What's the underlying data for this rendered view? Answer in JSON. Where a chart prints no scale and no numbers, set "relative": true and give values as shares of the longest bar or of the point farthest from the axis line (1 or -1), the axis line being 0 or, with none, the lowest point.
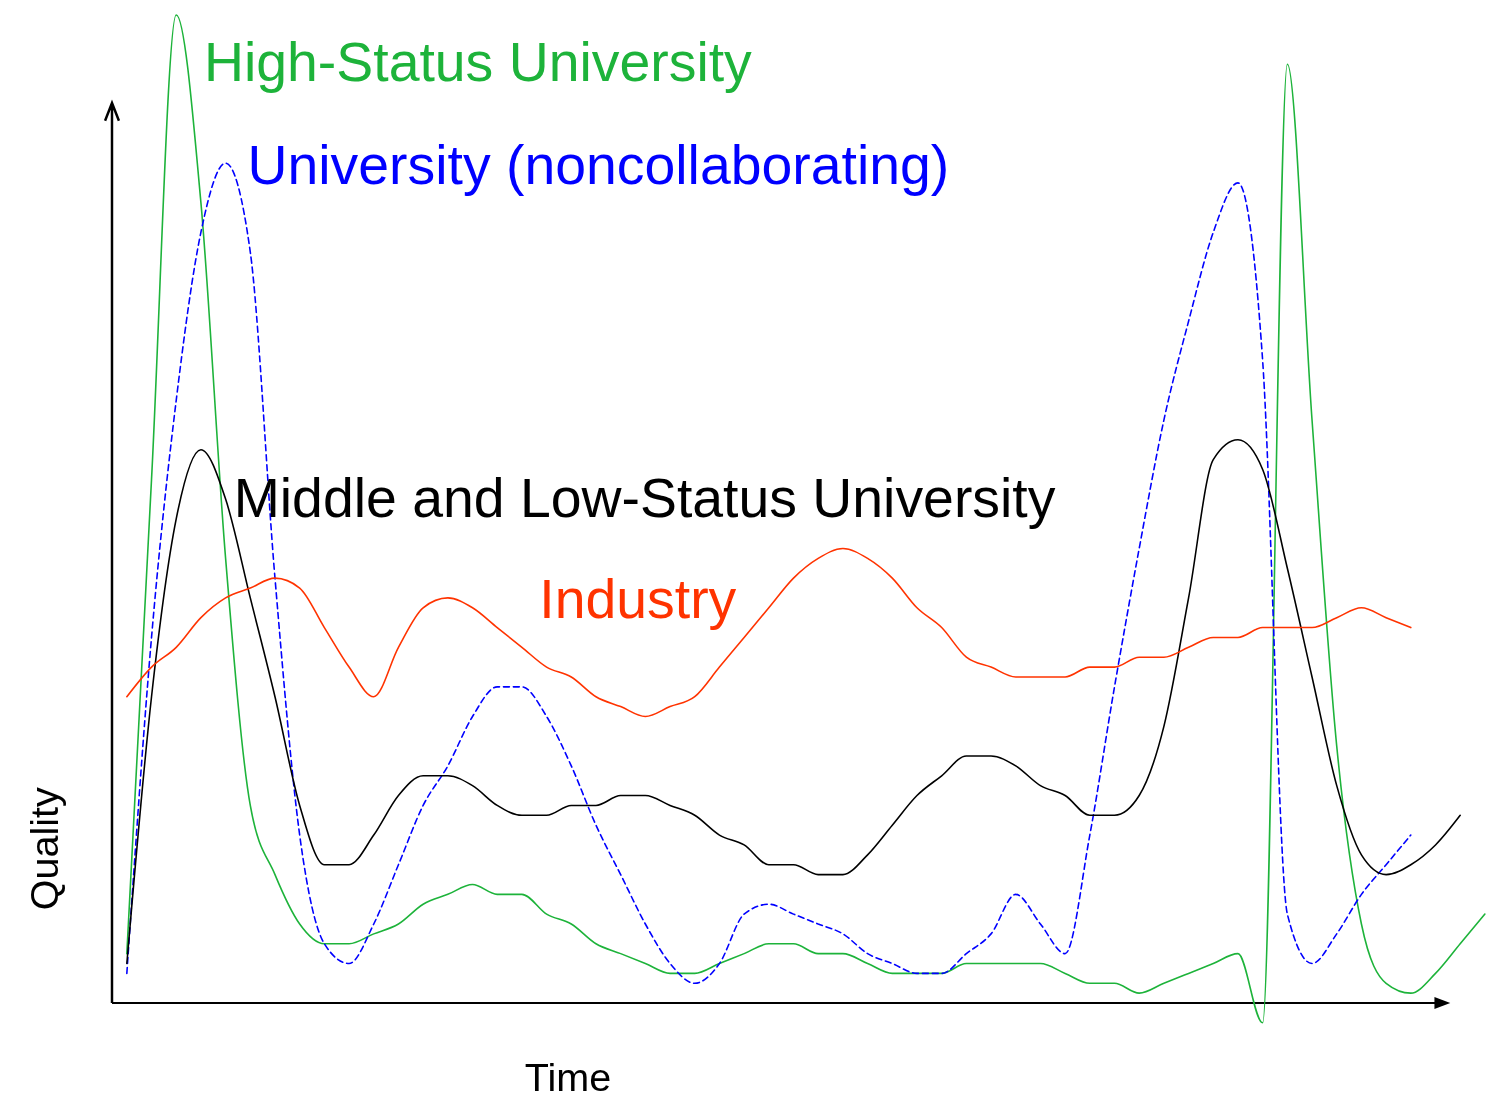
{
  "chart_data": {
    "type": "line",
    "relative": true,
    "xlabel": "Time",
    "ylabel": "Quality",
    "categories": [
      null,
      null,
      null,
      null,
      null,
      null,
      null,
      null,
      null,
      null,
      null,
      null,
      null,
      null,
      null,
      null,
      null,
      null,
      null,
      null,
      null,
      null,
      null,
      null,
      null,
      null,
      null,
      null,
      null,
      null,
      null,
      null,
      null,
      null,
      null,
      null,
      null,
      null,
      null,
      null,
      null,
      null,
      null,
      null,
      null,
      null,
      null,
      null,
      null,
      null,
      null,
      null,
      null,
      null,
      null,
      null
    ],
    "series": [
      {
        "name": "High-Status University",
        "color": "#1db33a",
        "values": [
          0.05,
          0.53,
          1.0,
          0.81,
          0.45,
          0.2,
          0.13,
          0.08,
          0.06,
          0.06,
          0.07,
          0.08,
          0.1,
          0.11,
          0.12,
          0.11,
          0.11,
          0.09,
          0.08,
          0.06,
          0.05,
          0.04,
          0.03,
          0.03,
          0.04,
          0.05,
          0.06,
          0.06,
          0.05,
          0.05,
          0.04,
          0.03,
          0.03,
          0.03,
          0.04,
          0.04,
          0.04,
          0.04,
          0.03,
          0.02,
          0.02,
          0.01,
          0.02,
          0.03,
          0.04,
          0.05,
          -0.02,
          0.95,
          0.59,
          0.26,
          0.08,
          0.02,
          0.01,
          0.03,
          0.06,
          0.09
        ]
      },
      {
        "name": "University (noncollaborating)",
        "color": "#0000ff",
        "line_style": "dashed",
        "values": [
          0.03,
          0.37,
          0.61,
          0.78,
          0.85,
          0.76,
          0.43,
          0.17,
          0.06,
          0.04,
          0.08,
          0.14,
          0.2,
          0.24,
          0.29,
          0.32,
          0.32,
          0.29,
          0.24,
          0.18,
          0.13,
          0.08,
          0.04,
          0.02,
          0.04,
          0.09,
          0.1,
          0.09,
          0.08,
          0.07,
          0.05,
          0.04,
          0.03,
          0.03,
          0.05,
          0.07,
          0.11,
          0.08,
          0.05,
          0.17,
          0.32,
          0.46,
          0.59,
          0.69,
          0.78,
          0.83,
          0.65,
          0.09,
          0.04,
          0.07,
          0.11,
          0.14,
          0.17,
          null,
          null,
          null
        ]
      },
      {
        "name": "Middle and Low-Status University",
        "color": "#000000",
        "values": [
          0.04,
          0.31,
          0.49,
          0.56,
          0.51,
          0.41,
          0.31,
          0.2,
          0.14,
          0.14,
          0.17,
          0.21,
          0.23,
          0.23,
          0.22,
          0.2,
          0.19,
          0.19,
          0.2,
          0.2,
          0.21,
          0.21,
          0.2,
          0.19,
          0.17,
          0.16,
          0.14,
          0.14,
          0.13,
          0.13,
          0.15,
          0.18,
          0.21,
          0.23,
          0.25,
          0.25,
          0.24,
          0.22,
          0.21,
          0.19,
          0.19,
          0.21,
          0.28,
          0.41,
          0.55,
          0.57,
          0.54,
          0.44,
          0.33,
          0.22,
          0.15,
          0.13,
          0.14,
          0.16,
          0.19,
          null
        ]
      },
      {
        "name": "Industry",
        "color": "#ff3300",
        "values": [
          0.31,
          0.34,
          0.36,
          0.39,
          0.41,
          0.42,
          0.43,
          0.42,
          0.38,
          0.34,
          0.31,
          0.36,
          0.4,
          0.41,
          0.4,
          0.38,
          0.36,
          0.34,
          0.33,
          0.31,
          0.3,
          0.29,
          0.3,
          0.31,
          0.34,
          0.37,
          0.4,
          0.43,
          0.45,
          0.46,
          0.45,
          0.43,
          0.4,
          0.38,
          0.35,
          0.34,
          0.33,
          0.33,
          0.33,
          0.34,
          0.34,
          0.35,
          0.35,
          0.36,
          0.37,
          0.37,
          0.38,
          0.38,
          0.38,
          0.39,
          0.4,
          0.39,
          0.38,
          null,
          null,
          null
        ]
      }
    ]
  }
}
